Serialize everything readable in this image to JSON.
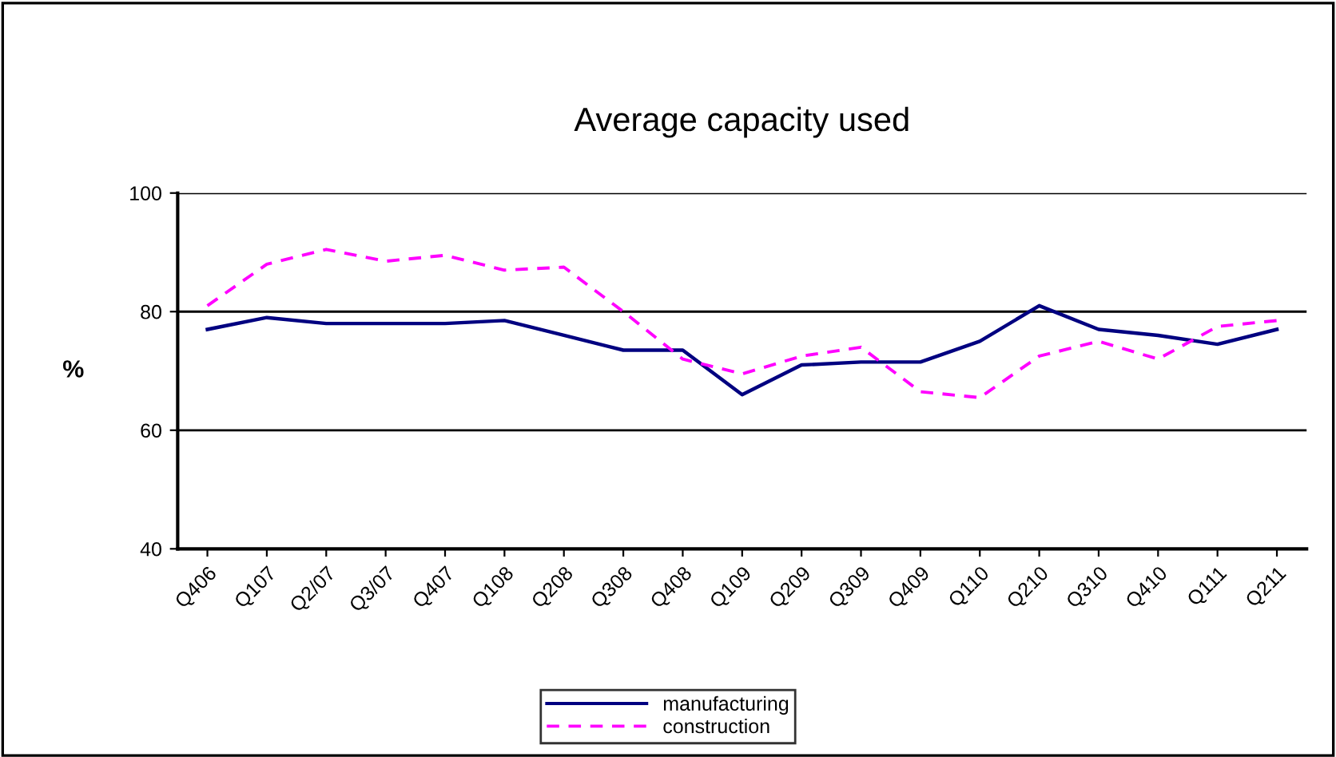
{
  "chart_data": {
    "type": "line",
    "title": "Average capacity used",
    "ylabel": "%",
    "categories": [
      "Q406",
      "Q107",
      "Q2/07",
      "Q3/07",
      "Q407",
      "Q108",
      "Q208",
      "Q308",
      "Q408",
      "Q109",
      "Q209",
      "Q309",
      "Q409",
      "Q110",
      "Q210",
      "Q310",
      "Q410",
      "Q111",
      "Q211"
    ],
    "series": [
      {
        "name": "manufacturing",
        "color": "#000080",
        "line_style": "solid",
        "values": [
          77,
          79,
          78,
          78,
          78,
          78.5,
          76,
          73.5,
          73.5,
          66,
          71,
          71.5,
          71.5,
          75,
          81,
          77,
          76,
          74.5,
          77
        ]
      },
      {
        "name": "construction",
        "color": "#ff00ff",
        "line_style": "dashed",
        "values": [
          81,
          88,
          90.5,
          88.5,
          89.5,
          87,
          87.5,
          80,
          72,
          69.5,
          72.5,
          74,
          66.5,
          65.5,
          72.5,
          75,
          72,
          77.5,
          78.5
        ]
      }
    ],
    "ylim": [
      40,
      100
    ],
    "yticks": [
      40,
      60,
      80,
      100
    ],
    "grid": "y",
    "legend": "bottom",
    "marker": "none"
  }
}
